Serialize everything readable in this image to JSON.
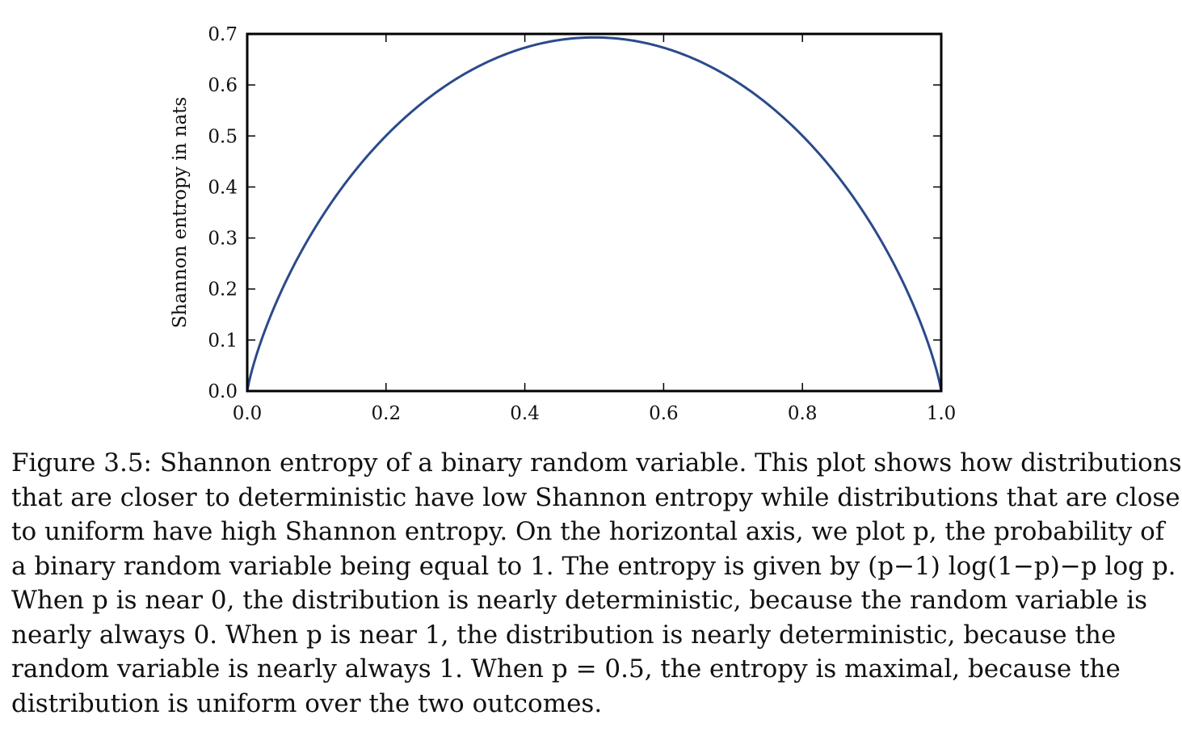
{
  "chart_data": {
    "type": "line",
    "title": "",
    "xlabel": "",
    "ylabel": "Shannon entropy in nats",
    "xlim": [
      0.0,
      1.0
    ],
    "ylim": [
      0.0,
      0.7
    ],
    "xticks": [
      "0.0",
      "0.2",
      "0.4",
      "0.6",
      "0.8",
      "1.0"
    ],
    "yticks": [
      "0.0",
      "0.1",
      "0.2",
      "0.3",
      "0.4",
      "0.5",
      "0.6",
      "0.7"
    ],
    "grid": false,
    "line_color": "#2b4a8b",
    "series": [
      {
        "x": [
          0.0,
          0.02,
          0.05,
          0.1,
          0.15,
          0.2,
          0.25,
          0.3,
          0.35,
          0.4,
          0.45,
          0.5,
          0.55,
          0.6,
          0.65,
          0.7,
          0.75,
          0.8,
          0.85,
          0.9,
          0.95,
          0.98,
          1.0
        ],
        "values": [
          0.0,
          0.098,
          0.199,
          0.325,
          0.423,
          0.5,
          0.562,
          0.611,
          0.647,
          0.673,
          0.688,
          0.693,
          0.688,
          0.673,
          0.647,
          0.611,
          0.562,
          0.5,
          0.423,
          0.325,
          0.199,
          0.098,
          0.0
        ]
      }
    ]
  },
  "caption": {
    "lines": [
      "Figure 3.5: Shannon entropy of a binary random variable. This plot shows how distributions",
      "that are closer to deterministic have low Shannon entropy while distributions that are close",
      "to uniform have high Shannon entropy. On the horizontal axis, we plot p, the probability of",
      "a binary random variable being equal to 1. The entropy is given by (p−1) log(1−p)−p log p.",
      "When p is near 0, the distribution is nearly deterministic, because the random variable is",
      "nearly always 0. When p is near 1, the distribution is nearly deterministic, because the",
      "random variable is nearly always 1. When p = 0.5, the entropy is maximal, because the",
      "distribution is uniform over the two outcomes."
    ]
  }
}
